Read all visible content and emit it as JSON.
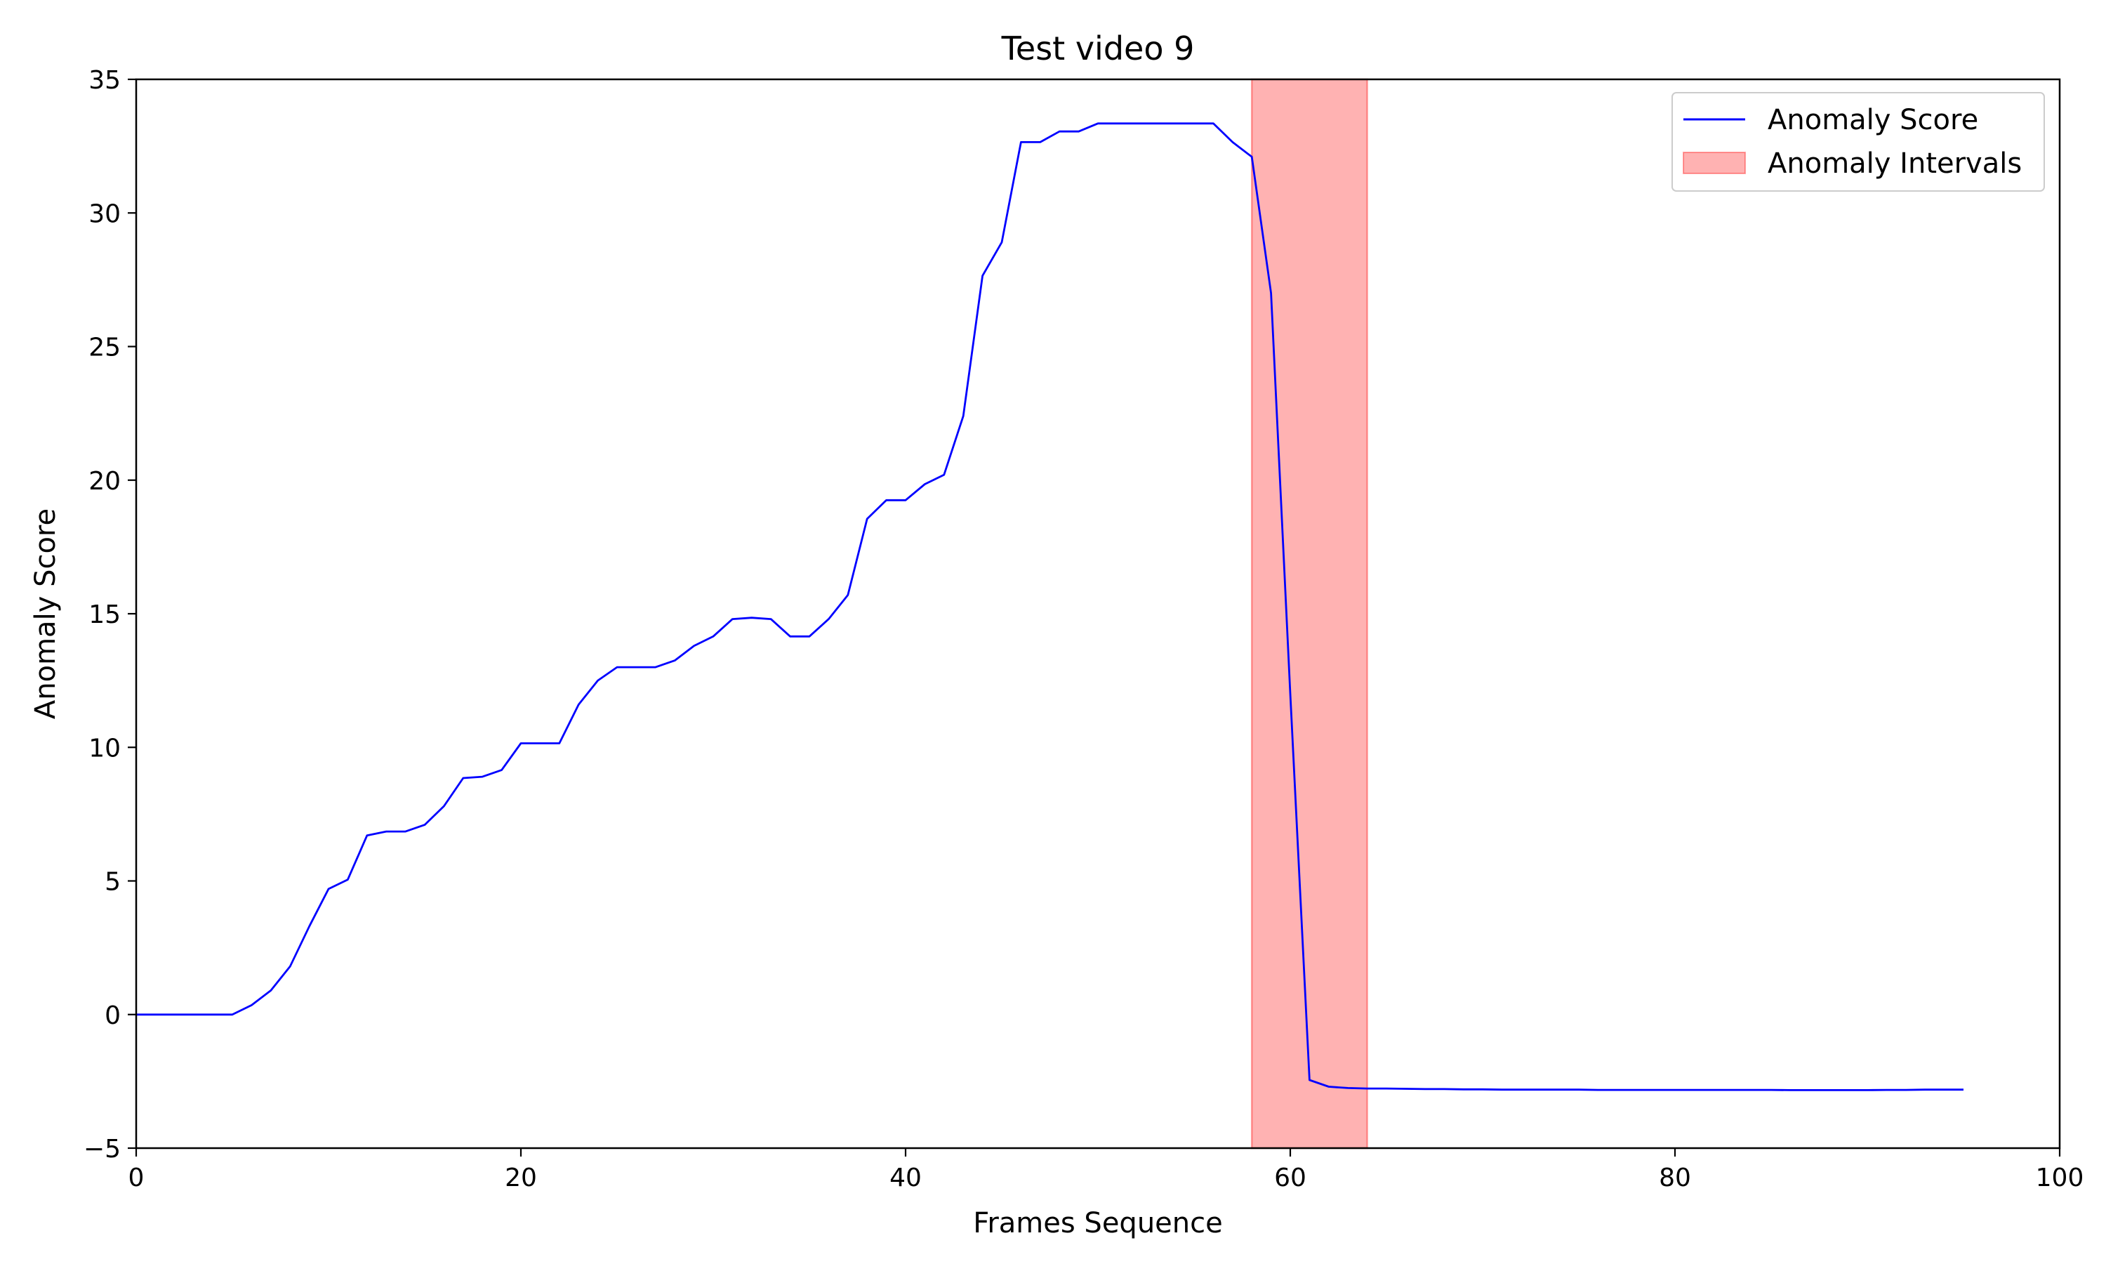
{
  "chart_data": {
    "type": "line",
    "title": "Test video 9",
    "xlabel": "Frames Sequence",
    "ylabel": "Anomaly Score",
    "xlim": [
      0,
      100
    ],
    "ylim": [
      -5,
      35
    ],
    "xticks": [
      0,
      20,
      40,
      60,
      80,
      100
    ],
    "yticks": [
      -5,
      0,
      5,
      10,
      15,
      20,
      25,
      30,
      35
    ],
    "ytick_labels": [
      "−5",
      "0",
      "5",
      "10",
      "15",
      "20",
      "25",
      "30",
      "35"
    ],
    "grid": false,
    "legend_position": "top-right",
    "series": [
      {
        "name": "Anomaly Score",
        "color": "#0000ff",
        "x": [
          0,
          1,
          2,
          3,
          4,
          5,
          6,
          7,
          8,
          9,
          10,
          11,
          12,
          13,
          14,
          15,
          16,
          17,
          18,
          19,
          20,
          21,
          22,
          23,
          24,
          25,
          26,
          27,
          28,
          29,
          30,
          31,
          32,
          33,
          34,
          35,
          36,
          37,
          38,
          39,
          40,
          41,
          42,
          43,
          44,
          45,
          46,
          47,
          48,
          49,
          50,
          51,
          52,
          53,
          54,
          55,
          56,
          57,
          58,
          59,
          60,
          61,
          62,
          63,
          64,
          65,
          66,
          67,
          68,
          69,
          70,
          71,
          72,
          73,
          74,
          75,
          76,
          77,
          78,
          79,
          80,
          81,
          82,
          83,
          84,
          85,
          86,
          87,
          88,
          89,
          90,
          91,
          92,
          93,
          94,
          95
        ],
        "y": [
          0,
          0,
          0,
          0,
          0,
          0,
          0.35,
          0.9,
          1.8,
          3.3,
          4.7,
          5.05,
          6.7,
          6.85,
          6.85,
          7.1,
          7.8,
          8.85,
          8.9,
          9.15,
          10.15,
          10.15,
          10.15,
          11.6,
          12.5,
          13,
          13,
          13,
          13.25,
          13.8,
          14.15,
          14.8,
          14.85,
          14.8,
          14.15,
          14.15,
          14.8,
          15.7,
          18.55,
          19.25,
          19.25,
          19.85,
          20.2,
          22.4,
          27.65,
          28.9,
          32.65,
          32.65,
          33.05,
          33.05,
          33.35,
          33.35,
          33.35,
          33.35,
          33.35,
          33.35,
          33.35,
          32.65,
          32.1,
          27,
          12,
          -2.45,
          -2.7,
          -2.75,
          -2.77,
          -2.77,
          -2.78,
          -2.79,
          -2.79,
          -2.8,
          -2.8,
          -2.81,
          -2.81,
          -2.81,
          -2.81,
          -2.81,
          -2.82,
          -2.82,
          -2.82,
          -2.82,
          -2.82,
          -2.82,
          -2.82,
          -2.82,
          -2.82,
          -2.82,
          -2.83,
          -2.83,
          -2.83,
          -2.83,
          -2.83,
          -2.82,
          -2.82,
          -2.81,
          -2.81,
          -2.81
        ]
      }
    ],
    "intervals": [
      {
        "name": "Anomaly Intervals",
        "color": "#ff0000",
        "opacity": 0.3,
        "start": 58,
        "end": 64
      }
    ]
  }
}
